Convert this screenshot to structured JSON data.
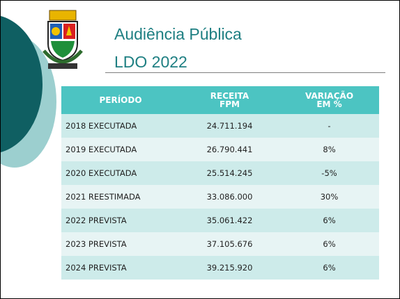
{
  "title": {
    "line1": "Audiência Pública",
    "line2": "LDO 2022"
  },
  "table": {
    "header": [
      "PERÍODO",
      "RECEITA FPM",
      "VARIAÇÃO EM %"
    ],
    "rows": [
      [
        "2018 EXECUTADA",
        "24.711.194",
        "-"
      ],
      [
        "2019 EXECUTADA",
        "26.790.441",
        "8%"
      ],
      [
        "2020 EXECUTADA",
        "25.514.245",
        "-5%"
      ],
      [
        "2021 REESTIMADA",
        "33.086.000",
        "30%"
      ],
      [
        "2022 PREVISTA",
        "35.061.422",
        "6%"
      ],
      [
        "2023 PREVISTA",
        "37.105.676",
        "6%"
      ],
      [
        "2024 PREVISTA",
        "39.215.920",
        "6%"
      ]
    ]
  }
}
